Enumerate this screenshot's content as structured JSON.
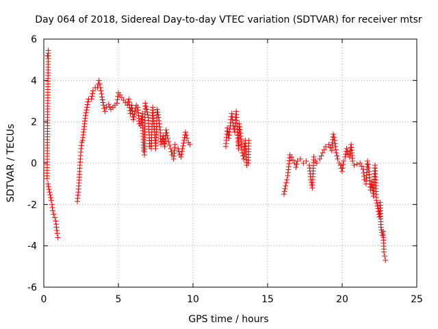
{
  "chart_data": {
    "type": "scatter",
    "title": "Day 064 of 2018, Sidereal Day-to-day VTEC variation (SDTVAR) for receiver mtsr",
    "xlabel": "GPS time / hours",
    "ylabel": "SDTVAR / TECUs",
    "xlim": [
      0,
      25
    ],
    "ylim": [
      -6,
      6
    ],
    "xticks": [
      0,
      5,
      10,
      15,
      20,
      25
    ],
    "xtick_labels": [
      "0",
      "5",
      "10",
      "15",
      "20",
      "25"
    ],
    "yticks": [
      -6,
      -4,
      -2,
      0,
      2,
      4,
      6
    ],
    "ytick_labels": [
      "-6",
      "-4",
      "-2",
      "0",
      "2",
      "4",
      "6"
    ],
    "grid": true,
    "marker": "+",
    "series": [
      {
        "name": "SDTVAR",
        "color": "#ff0000",
        "segments": [
          [
            [
              0.25,
              5.2
            ],
            [
              0.3,
              5.45
            ],
            [
              0.22,
              -0.75
            ],
            [
              0.28,
              -1.0
            ],
            [
              0.5,
              -1.8
            ],
            [
              0.55,
              -2.0
            ],
            [
              0.6,
              -2.3
            ],
            [
              0.8,
              -2.8
            ],
            [
              0.85,
              -3.1
            ],
            [
              0.9,
              -3.4
            ],
            [
              0.95,
              -3.6
            ]
          ],
          [
            [
              2.25,
              -1.85
            ],
            [
              2.35,
              -1.1
            ],
            [
              2.4,
              -0.4
            ],
            [
              2.45,
              0.2
            ],
            [
              2.5,
              0.7
            ],
            [
              2.55,
              1.0
            ],
            [
              2.6,
              1.1
            ],
            [
              2.8,
              2.3
            ],
            [
              2.9,
              2.7
            ],
            [
              3.0,
              3.1
            ],
            [
              3.2,
              3.1
            ],
            [
              3.3,
              3.5
            ],
            [
              3.45,
              3.65
            ],
            [
              3.6,
              3.65
            ],
            [
              3.7,
              4.0
            ],
            [
              3.8,
              3.65
            ],
            [
              3.9,
              3.2
            ],
            [
              4.0,
              2.8
            ],
            [
              4.1,
              2.5
            ],
            [
              4.2,
              2.7
            ],
            [
              4.35,
              2.85
            ],
            [
              4.5,
              2.6
            ],
            [
              4.9,
              2.9
            ],
            [
              5.0,
              3.4
            ],
            [
              5.1,
              3.3
            ],
            [
              5.6,
              2.8
            ],
            [
              5.7,
              3.1
            ],
            [
              5.8,
              2.4
            ],
            [
              5.9,
              2.8
            ],
            [
              6.0,
              2.1
            ],
            [
              6.1,
              2.5
            ],
            [
              6.2,
              2.8
            ],
            [
              6.3,
              2.7
            ],
            [
              6.4,
              1.9
            ],
            [
              6.5,
              1.8
            ],
            [
              6.6,
              2.4
            ],
            [
              6.7,
              0.6
            ],
            [
              6.75,
              0.4
            ],
            [
              6.8,
              2.9
            ],
            [
              6.9,
              2.6
            ],
            [
              7.0,
              2.2
            ],
            [
              7.1,
              0.8
            ],
            [
              7.2,
              0.7
            ],
            [
              7.3,
              2.7
            ],
            [
              7.5,
              0.7
            ],
            [
              7.6,
              2.6
            ],
            [
              7.7,
              2.2
            ],
            [
              7.8,
              1.6
            ],
            [
              7.85,
              0.9
            ],
            [
              8.0,
              1.3
            ],
            [
              8.1,
              0.8
            ],
            [
              8.2,
              1.6
            ],
            [
              8.3,
              1.2
            ],
            [
              8.5,
              0.7
            ],
            [
              8.6,
              0.4
            ],
            [
              8.7,
              0.2
            ],
            [
              8.8,
              0.9
            ],
            [
              9.0,
              0.7
            ],
            [
              9.1,
              0.4
            ],
            [
              9.2,
              0.3
            ],
            [
              9.5,
              1.5
            ],
            [
              9.6,
              1.2
            ],
            [
              9.7,
              1.0
            ],
            [
              9.8,
              0.9
            ]
          ],
          [
            [
              12.2,
              0.8
            ],
            [
              12.3,
              1.7
            ],
            [
              12.4,
              1.2
            ],
            [
              12.5,
              1.8
            ],
            [
              12.6,
              2.4
            ],
            [
              12.7,
              1.8
            ],
            [
              12.8,
              1.5
            ],
            [
              12.9,
              2.5
            ],
            [
              13.0,
              1.2
            ],
            [
              13.05,
              0.7
            ],
            [
              13.1,
              1.9
            ],
            [
              13.2,
              1.3
            ],
            [
              13.3,
              0.5
            ],
            [
              13.4,
              0.2
            ],
            [
              13.5,
              1.1
            ],
            [
              13.6,
              -0.1
            ],
            [
              13.7,
              0.0
            ],
            [
              13.75,
              1.1
            ]
          ],
          [
            [
              16.1,
              -1.5
            ],
            [
              16.2,
              -1.1
            ],
            [
              16.3,
              -0.8
            ],
            [
              16.35,
              -0.6
            ],
            [
              16.5,
              0.4
            ],
            [
              16.6,
              0.3
            ],
            [
              16.8,
              0.0
            ],
            [
              16.9,
              -0.2
            ],
            [
              17.0,
              0.1
            ],
            [
              17.2,
              0.2
            ],
            [
              17.4,
              0.0
            ],
            [
              17.6,
              0.1
            ],
            [
              17.8,
              -0.1
            ],
            [
              17.9,
              -0.8
            ],
            [
              18.0,
              -1.2
            ],
            [
              18.1,
              0.3
            ],
            [
              18.2,
              0.1
            ],
            [
              18.3,
              0.0
            ],
            [
              18.5,
              0.2
            ],
            [
              18.7,
              0.5
            ],
            [
              18.9,
              0.8
            ],
            [
              19.1,
              0.9
            ],
            [
              19.3,
              0.6
            ],
            [
              19.4,
              1.4
            ],
            [
              19.5,
              1.1
            ],
            [
              19.6,
              0.5
            ],
            [
              19.7,
              0.2
            ],
            [
              19.8,
              0.0
            ],
            [
              19.9,
              -0.1
            ],
            [
              20.0,
              -0.4
            ],
            [
              20.1,
              0.1
            ],
            [
              20.2,
              0.3
            ],
            [
              20.3,
              0.7
            ],
            [
              20.4,
              0.4
            ],
            [
              20.5,
              0.3
            ],
            [
              20.6,
              0.9
            ],
            [
              20.7,
              0.1
            ],
            [
              20.8,
              -0.1
            ],
            [
              21.2,
              0.0
            ],
            [
              21.4,
              -0.3
            ],
            [
              21.5,
              -0.8
            ],
            [
              21.6,
              -1.0
            ],
            [
              21.7,
              0.1
            ],
            [
              21.8,
              -0.4
            ],
            [
              21.9,
              -1.3
            ],
            [
              22.0,
              -0.9
            ],
            [
              22.1,
              -1.6
            ],
            [
              22.2,
              -0.1
            ],
            [
              22.3,
              -1.8
            ],
            [
              22.4,
              -2.2
            ],
            [
              22.5,
              -2.6
            ],
            [
              22.55,
              -1.9
            ],
            [
              22.6,
              -3.1
            ],
            [
              22.7,
              -3.5
            ],
            [
              22.75,
              -3.3
            ],
            [
              22.8,
              -4.3
            ],
            [
              22.85,
              -4.5
            ],
            [
              22.9,
              -4.7
            ]
          ]
        ]
      }
    ]
  }
}
